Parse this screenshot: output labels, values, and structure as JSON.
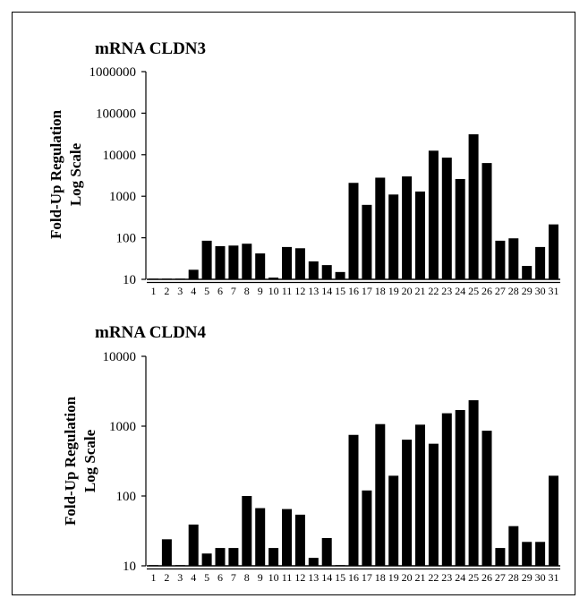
{
  "colors": {
    "bar": "#000000",
    "axis": "#000000",
    "background": "#ffffff"
  },
  "chart_data": [
    {
      "type": "bar",
      "title": "mRNA CLDN3",
      "ylabel": [
        "Fold-Up Regulation",
        "Log Scale"
      ],
      "xlabel": "",
      "yscale": "log",
      "ylim": [
        10,
        1000000
      ],
      "yticks": [
        "10",
        "100",
        "1000",
        "10000",
        "100000",
        "1000000"
      ],
      "grid": false,
      "legend": "none",
      "categories": [
        "1",
        "2",
        "3",
        "4",
        "5",
        "6",
        "7",
        "8",
        "9",
        "10",
        "11",
        "12",
        "13",
        "14",
        "15",
        "16",
        "17",
        "18",
        "19",
        "20",
        "21",
        "22",
        "23",
        "24",
        "25",
        "26",
        "27",
        "28",
        "29",
        "30",
        "31"
      ],
      "groups": [
        [
          1,
          15
        ],
        [
          16,
          26
        ],
        [
          27,
          31
        ]
      ],
      "values": [
        10,
        10,
        10,
        17,
        85,
        63,
        65,
        72,
        42,
        11,
        60,
        56,
        27,
        22,
        15,
        2100,
        620,
        2800,
        1100,
        3000,
        1300,
        12500,
        8500,
        2600,
        31000,
        6300,
        85,
        97,
        21,
        60,
        210
      ]
    },
    {
      "type": "bar",
      "title": "mRNA CLDN4",
      "ylabel": [
        "Fold-Up Regulation",
        "Log Scale"
      ],
      "xlabel": "",
      "yscale": "log",
      "ylim": [
        10,
        10000
      ],
      "yticks": [
        "10",
        "100",
        "1000",
        "10000"
      ],
      "grid": false,
      "legend": "none",
      "categories": [
        "1",
        "2",
        "3",
        "4",
        "5",
        "6",
        "7",
        "8",
        "9",
        "10",
        "11",
        "12",
        "13",
        "14",
        "15",
        "16",
        "17",
        "18",
        "19",
        "20",
        "21",
        "22",
        "23",
        "24",
        "25",
        "26",
        "27",
        "28",
        "29",
        "30",
        "31"
      ],
      "groups": [
        [
          1,
          15
        ],
        [
          16,
          26
        ],
        [
          27,
          31
        ]
      ],
      "values": [
        10,
        24,
        10,
        39,
        15,
        18,
        18,
        100,
        67,
        18,
        65,
        54,
        13,
        25,
        10,
        750,
        120,
        1070,
        195,
        640,
        1050,
        560,
        1530,
        1700,
        2350,
        860,
        18,
        37,
        22,
        22,
        195
      ]
    }
  ]
}
